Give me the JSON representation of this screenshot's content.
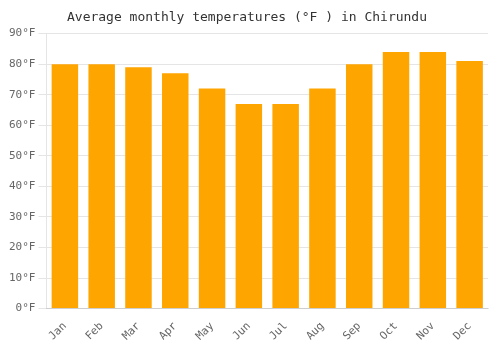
{
  "chart_data": {
    "type": "bar",
    "title": "Average monthly temperatures (°F ) in Chirundu",
    "categories": [
      "Jan",
      "Feb",
      "Mar",
      "Apr",
      "May",
      "Jun",
      "Jul",
      "Aug",
      "Sep",
      "Oct",
      "Nov",
      "Dec"
    ],
    "values": [
      80,
      80,
      79,
      77,
      72,
      67,
      67,
      72,
      80,
      84,
      84,
      81
    ],
    "color": "#FFA500",
    "ylim": [
      0,
      90
    ],
    "yticks": [
      {
        "value": 0,
        "label": "0°F"
      },
      {
        "value": 10,
        "label": "10°F"
      },
      {
        "value": 20,
        "label": "20°F"
      },
      {
        "value": 30,
        "label": "30°F"
      },
      {
        "value": 40,
        "label": "40°F"
      },
      {
        "value": 50,
        "label": "50°F"
      },
      {
        "value": 60,
        "label": "60°F"
      },
      {
        "value": 70,
        "label": "70°F"
      },
      {
        "value": 80,
        "label": "80°F"
      },
      {
        "value": 90,
        "label": "90°F"
      }
    ],
    "grid": true
  }
}
